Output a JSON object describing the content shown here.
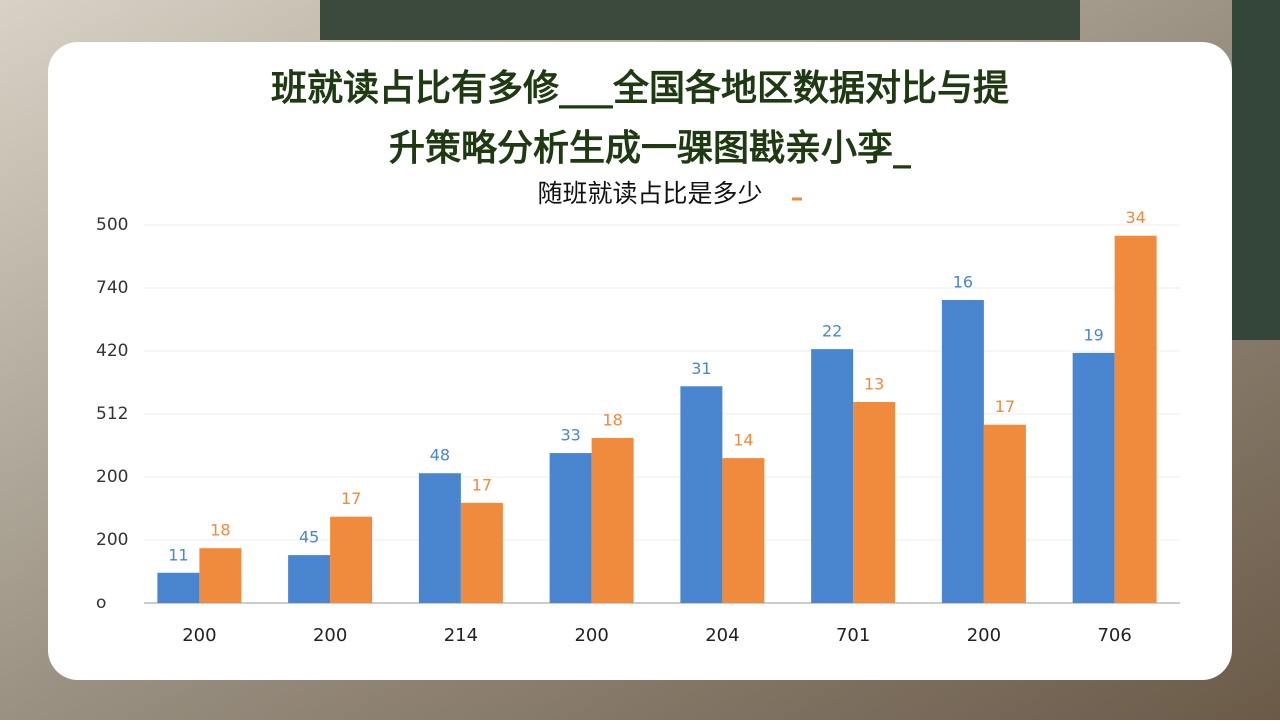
{
  "chart_data": {
    "type": "bar",
    "title": [
      "班就读占比有多修___全国各地区数据对比与提",
      "升策略分析生成一骒图戡亲小孪_"
    ],
    "subtitle": "随班就读占比是多少",
    "categories": [
      "200",
      "200",
      "214",
      "200",
      "204",
      "701",
      "200",
      "706"
    ],
    "series": [
      {
        "color": "#4a86cf",
        "values": [
          0.48,
          0.76,
          2.06,
          2.38,
          3.44,
          4.03,
          4.81,
          3.97
        ],
        "bar_labels": [
          "11",
          "45",
          "48",
          "33",
          "31",
          "22",
          "16",
          "19"
        ]
      },
      {
        "color": "#f08a3c",
        "values": [
          0.87,
          1.37,
          1.59,
          2.62,
          2.3,
          3.19,
          2.83,
          5.83
        ],
        "bar_labels": [
          "18",
          "17",
          "17",
          "18",
          "14",
          "13",
          "17",
          "34"
        ]
      }
    ],
    "ylim": [
      0,
      6
    ],
    "yticks": [
      {
        "value": 0,
        "label": "o"
      },
      {
        "value": 1,
        "label": "200"
      },
      {
        "value": 2,
        "label": "200"
      },
      {
        "value": 3,
        "label": "512"
      },
      {
        "value": 4,
        "label": "420"
      },
      {
        "value": 5,
        "label": "740"
      },
      {
        "value": 6,
        "label": "500"
      }
    ],
    "grid": true
  }
}
